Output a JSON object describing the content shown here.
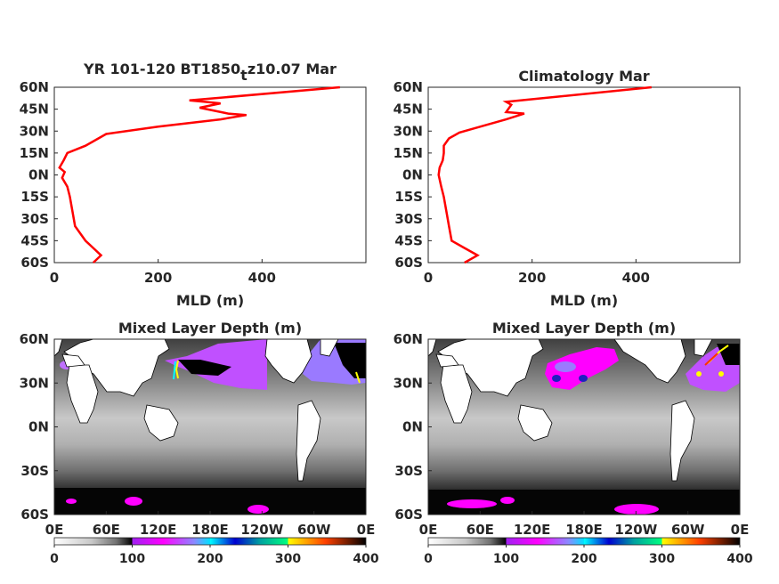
{
  "charts": {
    "profile_left": {
      "title_main": "YR 101-120 BT1850",
      "title_sub": "t",
      "title_tail": "z10.07 Mar",
      "xlabel": "MLD (m)"
    },
    "profile_right": {
      "title": "Climatology Mar",
      "xlabel": "MLD (m)"
    },
    "map_left": {
      "title": "Mixed Layer Depth (m)"
    },
    "map_right": {
      "title": "Mixed Layer Depth (m)"
    }
  },
  "lat_ticks": [
    "60N",
    "45N",
    "30N",
    "15N",
    "0N",
    "15S",
    "30S",
    "45S",
    "60S"
  ],
  "mld_ticks": [
    "0",
    "200",
    "400"
  ],
  "map_lat_ticks": [
    "60N",
    "30N",
    "0N",
    "30S",
    "60S"
  ],
  "lon_ticks": [
    "0E",
    "60E",
    "120E",
    "180E",
    "120W",
    "60W",
    "0E"
  ],
  "colorbar_ticks": [
    "0",
    "100",
    "200",
    "300",
    "400"
  ],
  "colors": {
    "profile_line": "#ff0000",
    "colormap": [
      "#ffffff",
      "#c8c8c8",
      "#808080",
      "#101010",
      "#b030ff",
      "#ff00ff",
      "#8080ff",
      "#00c0ff",
      "#0000c0",
      "#00a0a0",
      "#ffff00",
      "#ff0000",
      "#000000"
    ]
  },
  "chart_data": [
    {
      "type": "line",
      "title": "YR 101-120 BT1850tz10.07 Mar",
      "xlabel": "MLD (m)",
      "ylabel": "",
      "xlim": [
        0,
        600
      ],
      "ylim": [
        -60,
        60
      ],
      "series": [
        {
          "x": [
            75,
            90,
            75,
            60,
            40,
            35,
            30,
            25,
            15,
            20,
            10,
            18,
            25,
            60,
            100,
            200,
            320,
            370,
            335,
            280,
            320,
            290,
            260,
            550
          ],
          "y": [
            -60,
            -55,
            -50,
            -45,
            -35,
            -25,
            -15,
            -8,
            -2,
            2,
            5,
            10,
            15,
            20,
            28,
            33,
            38,
            41,
            42,
            46,
            49,
            50,
            51,
            60
          ]
        }
      ]
    },
    {
      "type": "line",
      "title": "Climatology Mar",
      "xlabel": "MLD (m)",
      "ylabel": "",
      "xlim": [
        0,
        600
      ],
      "ylim": [
        -60,
        60
      ],
      "series": [
        {
          "x": [
            70,
            95,
            70,
            45,
            40,
            35,
            30,
            25,
            20,
            22,
            28,
            30,
            30,
            40,
            60,
            100,
            150,
            185,
            150,
            160,
            150,
            430
          ],
          "y": [
            -60,
            -55,
            -50,
            -45,
            -35,
            -25,
            -15,
            -8,
            0,
            5,
            10,
            15,
            20,
            25,
            29,
            33,
            38,
            42,
            43,
            48,
            50,
            60
          ]
        }
      ]
    },
    {
      "type": "heatmap",
      "title": "Mixed Layer Depth (m)",
      "x_ticks": [
        "0E",
        "60E",
        "120E",
        "180E",
        "120W",
        "60W",
        "0E"
      ],
      "y_ticks": [
        "60N",
        "30N",
        "0N",
        "30S",
        "60S"
      ],
      "color_range": [
        0,
        400
      ]
    },
    {
      "type": "heatmap",
      "title": "Mixed Layer Depth (m)",
      "x_ticks": [
        "0E",
        "60E",
        "120E",
        "180E",
        "120W",
        "60W",
        "0E"
      ],
      "y_ticks": [
        "60N",
        "30N",
        "0N",
        "30S",
        "60S"
      ],
      "color_range": [
        0,
        400
      ]
    }
  ]
}
